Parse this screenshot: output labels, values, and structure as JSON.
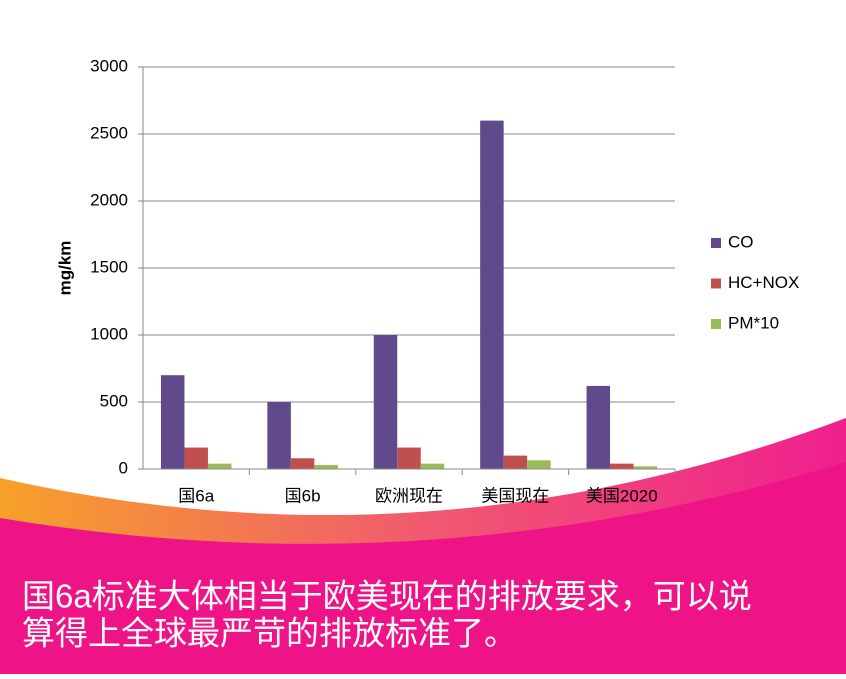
{
  "chart_data": {
    "type": "bar",
    "ylabel": "mg/km",
    "categories": [
      "国6a",
      "国6b",
      "欧洲现在",
      "美国现在",
      "美国2020"
    ],
    "series": [
      {
        "name": "CO",
        "color": "#604a8b",
        "values": [
          700,
          500,
          1000,
          2600,
          620
        ]
      },
      {
        "name": "HC+NOX",
        "color": "#c0504d",
        "values": [
          160,
          80,
          160,
          100,
          40
        ]
      },
      {
        "name": "PM*10",
        "color": "#9bbb59",
        "values": [
          40,
          30,
          40,
          65,
          20
        ]
      }
    ],
    "ylim": [
      0,
      3000
    ],
    "yticks": [
      0,
      500,
      1000,
      1500,
      2000,
      2500,
      3000
    ],
    "grid": true,
    "legend": "right"
  },
  "caption": [
    "国6a标准大体相当于欧美现在的排放要求，可以说",
    "算得上全球最严苛的排放标准了。"
  ]
}
